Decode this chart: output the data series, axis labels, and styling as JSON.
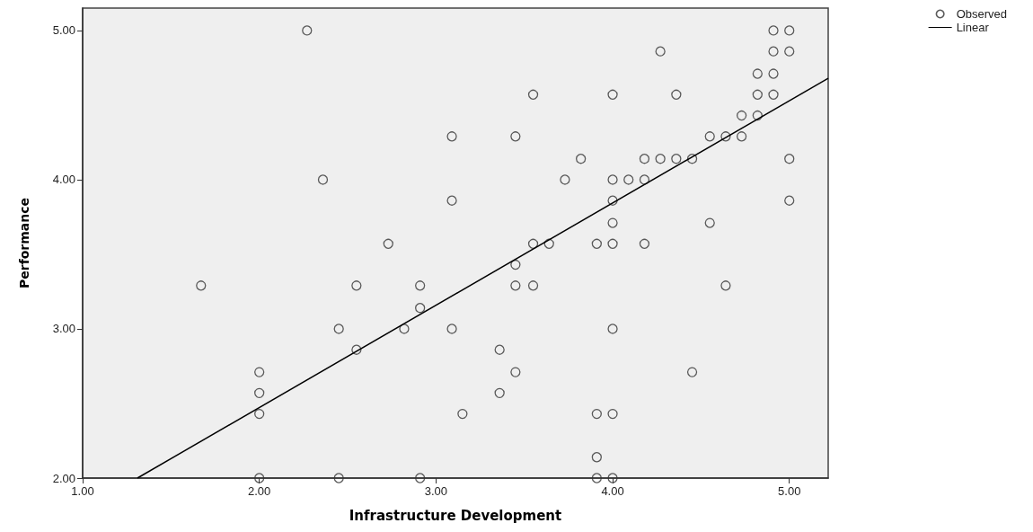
{
  "chart_data": {
    "type": "scatter",
    "xlabel": "Infrastructure Development",
    "ylabel": "Performance",
    "xlim": [
      1,
      5.22
    ],
    "ylim": [
      2,
      5.15
    ],
    "xticks": [
      {
        "value": 1,
        "label": "1.00"
      },
      {
        "value": 2,
        "label": "2.00"
      },
      {
        "value": 3,
        "label": "3.00"
      },
      {
        "value": 4,
        "label": "4.00"
      },
      {
        "value": 5,
        "label": "5.00"
      }
    ],
    "yticks": [
      {
        "value": 2,
        "label": "2.00"
      },
      {
        "value": 3,
        "label": "3.00"
      },
      {
        "value": 4,
        "label": "4.00"
      },
      {
        "value": 5,
        "label": "5.00"
      }
    ],
    "grid": false,
    "legend": "top right",
    "marker": "circle",
    "series": [
      {
        "name": "Observed",
        "color": "#333333",
        "x": [
          2.27,
          2.36,
          2.73,
          4.91,
          5.0,
          4.27,
          4.91,
          5.0,
          4.82,
          4.91,
          3.55,
          4.0,
          4.36,
          4.82,
          4.91,
          4.73,
          4.82,
          3.09,
          3.45,
          4.55,
          4.64,
          4.73,
          3.82,
          4.18,
          4.27,
          4.36,
          4.45,
          5.0,
          3.73,
          4.0,
          4.09,
          4.18,
          3.09,
          4.0,
          5.0,
          4.0,
          4.55,
          3.55,
          3.64,
          3.91,
          4.0,
          4.18,
          3.45,
          1.67,
          2.55,
          2.91,
          2.91,
          2.45,
          2.82,
          2.55,
          2.0,
          2.0,
          2.0,
          2.0,
          2.45,
          2.91,
          3.45,
          3.55,
          4.64,
          3.09,
          4.0,
          3.36,
          3.45,
          4.45,
          3.36,
          3.15,
          3.91,
          4.0,
          3.91,
          3.91,
          4.0
        ],
        "values": [
          5.0,
          4.0,
          3.57,
          5.0,
          5.0,
          4.86,
          4.86,
          4.86,
          4.71,
          4.71,
          4.57,
          4.57,
          4.57,
          4.57,
          4.57,
          4.43,
          4.43,
          4.29,
          4.29,
          4.29,
          4.29,
          4.29,
          4.14,
          4.14,
          4.14,
          4.14,
          4.14,
          4.14,
          4.0,
          4.0,
          4.0,
          4.0,
          3.86,
          3.86,
          3.86,
          3.71,
          3.71,
          3.57,
          3.57,
          3.57,
          3.57,
          3.57,
          3.43,
          3.29,
          3.29,
          3.29,
          3.14,
          3.0,
          3.0,
          2.86,
          2.71,
          2.57,
          2.43,
          2.0,
          2.0,
          2.0,
          3.29,
          3.29,
          3.29,
          3.0,
          3.0,
          2.86,
          2.71,
          2.71,
          2.57,
          2.43,
          2.43,
          2.43,
          2.14,
          2.0,
          2.0
        ]
      },
      {
        "name": "Linear",
        "type": "line",
        "color": "#000000",
        "line_style": "solid",
        "marker": "none",
        "x": [
          1.31,
          5.22
        ],
        "values": [
          2.0,
          4.68
        ]
      }
    ]
  }
}
